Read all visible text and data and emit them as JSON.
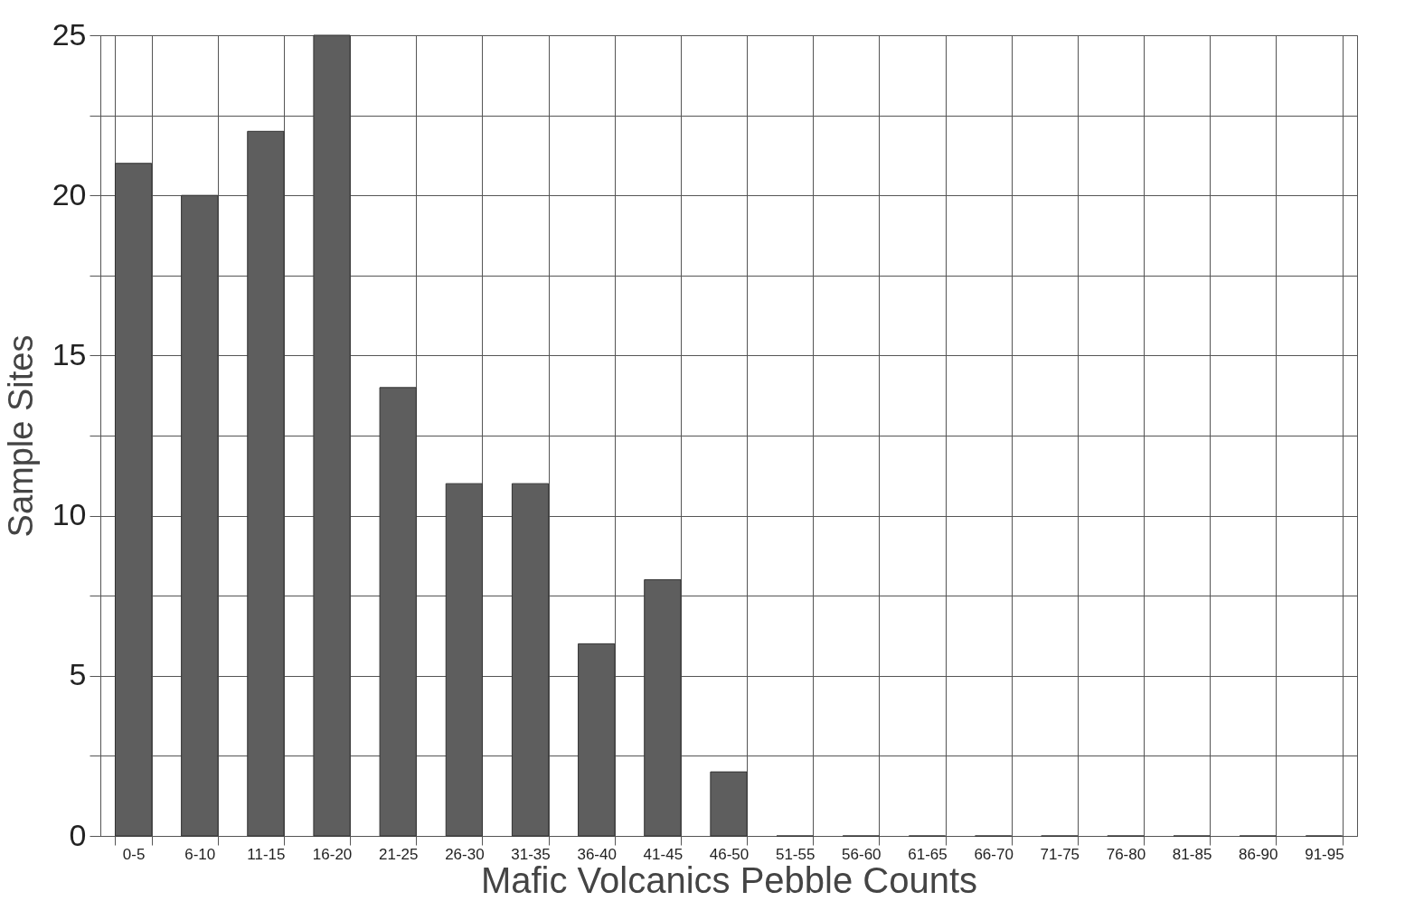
{
  "chart_data": {
    "type": "bar",
    "xlabel": "Mafic Volcanics Pebble Counts",
    "ylabel": "Sample Sites",
    "categories": [
      "0-5",
      "6-10",
      "11-15",
      "16-20",
      "21-25",
      "26-30",
      "31-35",
      "36-40",
      "41-45",
      "46-50",
      "51-55",
      "56-60",
      "61-65",
      "66-70",
      "71-75",
      "76-80",
      "81-85",
      "86-90",
      "91-95"
    ],
    "values": [
      21,
      20,
      22,
      25,
      14,
      11,
      11,
      6,
      8,
      2,
      0,
      0,
      0,
      0,
      0,
      0,
      0,
      0,
      0
    ],
    "color": "#5e5e5e",
    "ylim": [
      0,
      25
    ],
    "yticks": [
      0,
      {
        "value": 2.5,
        "label": null
      },
      5,
      {
        "value": 7.5,
        "label": null
      },
      10,
      {
        "value": 12.5,
        "label": null
      },
      15,
      {
        "value": 17.5,
        "label": null
      },
      20,
      {
        "value": 22.5,
        "label": null
      },
      25
    ],
    "grid": true
  }
}
